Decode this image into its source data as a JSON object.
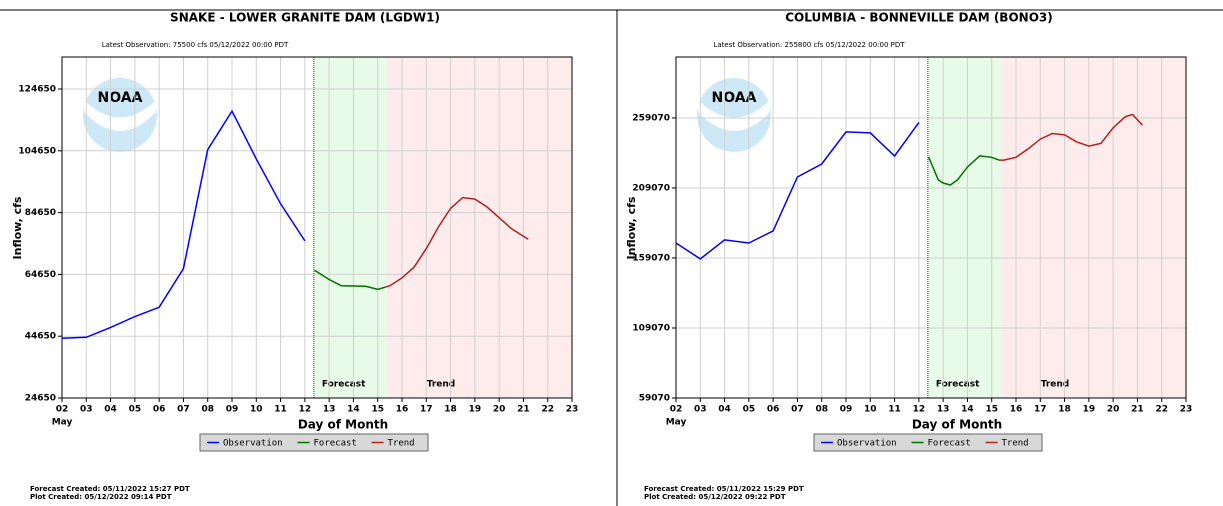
{
  "chart_data": [
    {
      "type": "line",
      "title": "SNAKE - LOWER GRANITE DAM  (LGDW1)",
      "subtitle": "Latest Observation: 75500 cfs 05/12/2022 00:00 PDT",
      "xlabel": "Day of Month",
      "x_sublabel": "May",
      "ylabel": "Inflow, cfs",
      "logo": "NOAA",
      "xlim": [
        2,
        23
      ],
      "xticks": [
        {
          "value": 2,
          "label": "02"
        },
        {
          "value": 3,
          "label": "03"
        },
        {
          "value": 4,
          "label": "04"
        },
        {
          "value": 5,
          "label": "05"
        },
        {
          "value": 6,
          "label": "06"
        },
        {
          "value": 7,
          "label": "07"
        },
        {
          "value": 8,
          "label": "08"
        },
        {
          "value": 9,
          "label": "09"
        },
        10,
        11,
        12,
        13,
        14,
        15,
        16,
        17,
        18,
        19,
        20,
        21,
        22,
        23
      ],
      "ylim": [
        24650,
        135000
      ],
      "yticks": [
        24650,
        44650,
        64650,
        84650,
        104650,
        124650
      ],
      "grid": true,
      "bands": [
        {
          "label": "Forecast",
          "x": [
            12.37,
            15.37
          ],
          "color": "#e6fae6"
        },
        {
          "label": "Trend",
          "x": [
            15.37,
            23
          ],
          "color": "#feeaea"
        }
      ],
      "series": [
        {
          "name": "Observation",
          "color": "#0000ff",
          "x": [
            2,
            3,
            4,
            5,
            6,
            7,
            8,
            9,
            10,
            11,
            12
          ],
          "values": [
            44000,
            44300,
            47500,
            51000,
            54000,
            66500,
            105000,
            117500,
            102000,
            87500,
            75500
          ]
        },
        {
          "name": "Forecast",
          "color": "#007000",
          "x": [
            12.4,
            13,
            13.5,
            14,
            14.5,
            15,
            15.3
          ],
          "values": [
            66000,
            63000,
            61000,
            60900,
            60800,
            59800,
            60500
          ]
        },
        {
          "name": "Trend",
          "color": "#b02020",
          "x": [
            15.3,
            15.5,
            16,
            16.5,
            17,
            17.5,
            18,
            18.5,
            19,
            19.5,
            20,
            20.5,
            21,
            21.2
          ],
          "values": [
            60500,
            61000,
            63500,
            67000,
            73000,
            80000,
            86000,
            89500,
            89000,
            86500,
            83000,
            79500,
            77000,
            76000
          ]
        }
      ],
      "notes": [
        "Forecast Created: 05/11/2022 15:27 PDT",
        "Plot Created: 05/12/2022 09:14 PDT"
      ]
    },
    {
      "type": "line",
      "title": "COLUMBIA - BONNEVILLE DAM  (BONO3)",
      "subtitle": "Latest Observation: 255800 cfs 05/12/2022 00:00 PDT",
      "xlabel": "Day of Month",
      "x_sublabel": "May",
      "ylabel": "Inflow, cfs",
      "logo": "NOAA",
      "xlim": [
        2,
        23
      ],
      "xticks": [
        {
          "value": 2,
          "label": "02"
        },
        {
          "value": 3,
          "label": "03"
        },
        {
          "value": 4,
          "label": "04"
        },
        {
          "value": 5,
          "label": "05"
        },
        {
          "value": 6,
          "label": "06"
        },
        {
          "value": 7,
          "label": "07"
        },
        {
          "value": 8,
          "label": "08"
        },
        {
          "value": 9,
          "label": "09"
        },
        10,
        11,
        12,
        13,
        14,
        15,
        16,
        17,
        18,
        19,
        20,
        21,
        22,
        23
      ],
      "ylim": [
        59070,
        302600
      ],
      "yticks": [
        59070,
        109070,
        159070,
        209070,
        259070
      ],
      "grid": true,
      "bands": [
        {
          "label": "Forecast",
          "x": [
            12.37,
            15.37
          ],
          "color": "#e6fae6"
        },
        {
          "label": "Trend",
          "x": [
            15.37,
            23
          ],
          "color": "#feeaea"
        }
      ],
      "series": [
        {
          "name": "Observation",
          "color": "#0000ff",
          "x": [
            2,
            3,
            4,
            5,
            6,
            7,
            8,
            9,
            10,
            11,
            12
          ],
          "values": [
            169800,
            158400,
            172000,
            169800,
            178400,
            216900,
            226200,
            249100,
            248400,
            231900,
            255800
          ]
        },
        {
          "name": "Forecast",
          "color": "#007000",
          "x": [
            12.4,
            12.8,
            13,
            13.3,
            13.6,
            14,
            14.5,
            15,
            15.3
          ],
          "values": [
            231200,
            214800,
            212600,
            211200,
            215000,
            224000,
            232000,
            231000,
            229000
          ]
        },
        {
          "name": "Trend",
          "color": "#b02020",
          "x": [
            15.3,
            15.5,
            16,
            16.5,
            17,
            17.5,
            18,
            18.5,
            19,
            19.5,
            20,
            20.5,
            20.8,
            21.2
          ],
          "values": [
            229000,
            229000,
            231000,
            237000,
            244000,
            248000,
            247000,
            242000,
            239000,
            241000,
            252000,
            260000,
            261500,
            254000
          ]
        }
      ],
      "notes": [
        "Forecast Created: 05/11/2022 15:29 PDT",
        "Plot Created: 05/12/2022 09:22 PDT"
      ]
    }
  ]
}
